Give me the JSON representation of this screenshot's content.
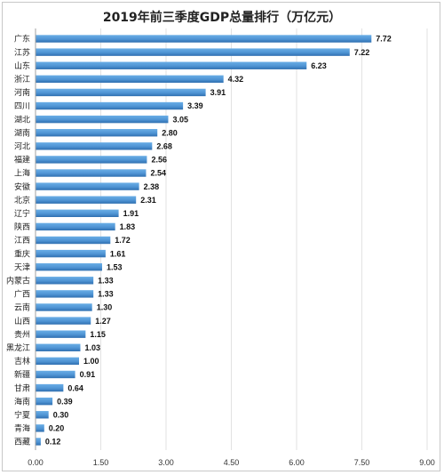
{
  "chart_data": {
    "type": "bar",
    "orientation": "horizontal",
    "title": "2019年前三季度GDP总量排行（万亿元）",
    "categories": [
      "广东",
      "江苏",
      "山东",
      "浙江",
      "河南",
      "四川",
      "湖北",
      "湖南",
      "河北",
      "福建",
      "上海",
      "安徽",
      "北京",
      "辽宁",
      "陕西",
      "江西",
      "重庆",
      "天津",
      "内蒙古",
      "广西",
      "云南",
      "山西",
      "贵州",
      "黑龙江",
      "吉林",
      "新疆",
      "甘肃",
      "海南",
      "宁夏",
      "青海",
      "西藏"
    ],
    "values": [
      7.72,
      7.22,
      6.23,
      4.32,
      3.91,
      3.39,
      3.05,
      2.8,
      2.68,
      2.56,
      2.54,
      2.38,
      2.31,
      1.91,
      1.83,
      1.72,
      1.61,
      1.53,
      1.33,
      1.33,
      1.3,
      1.27,
      1.15,
      1.03,
      1.0,
      0.91,
      0.64,
      0.39,
      0.3,
      0.2,
      0.12
    ],
    "value_labels": [
      "7.72",
      "7.22",
      "6.23",
      "4.32",
      "3.91",
      "3.39",
      "3.05",
      "2.80",
      "2.68",
      "2.56",
      "2.54",
      "2.38",
      "2.31",
      "1.91",
      "1.83",
      "1.72",
      "1.61",
      "1.53",
      "1.33",
      "1.33",
      "1.30",
      "1.27",
      "1.15",
      "1.03",
      "1.00",
      "0.91",
      "0.64",
      "0.39",
      "0.30",
      "0.20",
      "0.12"
    ],
    "xlim": [
      0,
      9
    ],
    "xticks": [
      "0.00",
      "1.50",
      "3.00",
      "4.50",
      "6.00",
      "7.50",
      "9.00"
    ],
    "xtick_values": [
      0,
      1.5,
      3,
      4.5,
      6,
      7.5,
      9
    ],
    "grid": true,
    "bar_color": "#4f94d4",
    "bar_color_dark": "#2f6fb0"
  }
}
